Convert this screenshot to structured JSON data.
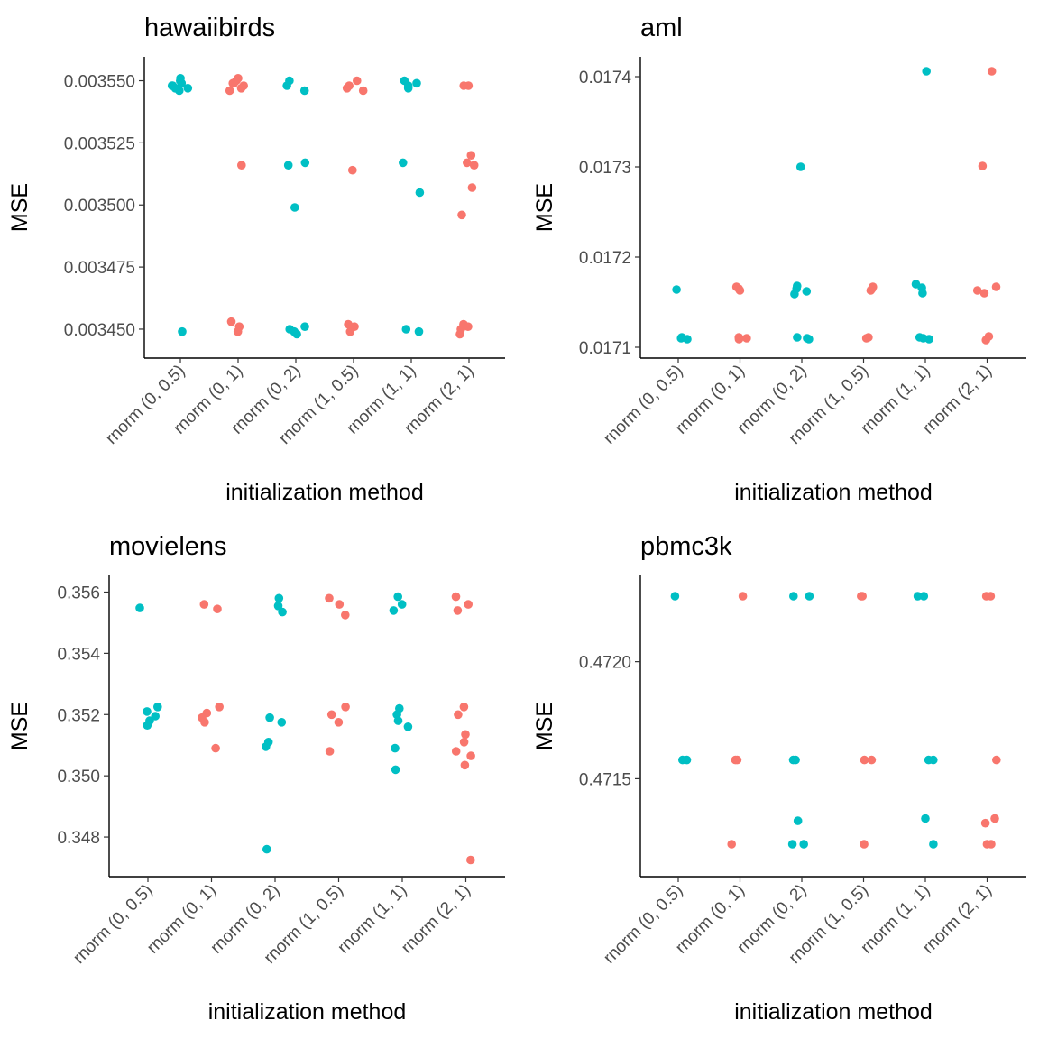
{
  "colors": {
    "teal": "#00BFC4",
    "salmon": "#F8766D"
  },
  "chart_data": [
    {
      "type": "scatter",
      "title": "hawaiibirds",
      "xlabel": "initialization method",
      "ylabel": "MSE",
      "categories": [
        "rnorm (0, 0.5)",
        "rnorm (0, 1)",
        "rnorm (0, 2)",
        "rnorm (1, 0.5)",
        "rnorm (1, 1)",
        "rnorm (2, 1)"
      ],
      "category_colors": [
        "teal",
        "salmon",
        "teal",
        "salmon",
        "teal",
        "salmon"
      ],
      "yticks": [
        "0.003450",
        "0.003475",
        "0.003500",
        "0.003525",
        "0.003550"
      ],
      "ylim": [
        0.003442,
        0.003556
      ],
      "points": [
        [
          0.00355,
          0.003549,
          0.003548,
          0.003547,
          0.003546,
          0.003551,
          0.003548,
          0.003547,
          0.003449
        ],
        [
          0.00355,
          0.003549,
          0.003548,
          0.003547,
          0.003546,
          0.003551,
          0.003549,
          0.003516,
          0.003453,
          0.003451,
          0.003449
        ],
        [
          0.00355,
          0.003548,
          0.003546,
          0.003517,
          0.003516,
          0.003499,
          0.003451,
          0.00345,
          0.003449,
          0.003448
        ],
        [
          0.00355,
          0.003548,
          0.003547,
          0.003546,
          0.003514,
          0.003452,
          0.003451,
          0.003449
        ],
        [
          0.00355,
          0.003549,
          0.003548,
          0.003547,
          0.003517,
          0.003505,
          0.00345,
          0.003449
        ],
        [
          0.003548,
          0.003548,
          0.00352,
          0.003517,
          0.003516,
          0.003507,
          0.003496,
          0.003452,
          0.003451,
          0.00345,
          0.003448
        ]
      ]
    },
    {
      "type": "scatter",
      "title": "aml",
      "xlabel": "initialization method",
      "ylabel": "MSE",
      "categories": [
        "rnorm (0, 0.5)",
        "rnorm (0, 1)",
        "rnorm (0, 2)",
        "rnorm (1, 0.5)",
        "rnorm (1, 1)",
        "rnorm (2, 1)"
      ],
      "category_colors": [
        "teal",
        "salmon",
        "teal",
        "salmon",
        "teal",
        "salmon"
      ],
      "yticks": [
        "0.0171",
        "0.0172",
        "0.0173",
        "0.0174"
      ],
      "ylim": [
        0.017098,
        0.017412
      ],
      "points": [
        [
          0.017164,
          0.017111,
          0.01711,
          0.017109
        ],
        [
          0.017167,
          0.017165,
          0.017163,
          0.017111,
          0.01711,
          0.017109
        ],
        [
          0.0173,
          0.017168,
          0.017165,
          0.017162,
          0.017159,
          0.017111,
          0.01711,
          0.017109
        ],
        [
          0.017167,
          0.017165,
          0.017163,
          0.017111,
          0.01711
        ],
        [
          0.017406,
          0.01717,
          0.017166,
          0.01716,
          0.017111,
          0.01711,
          0.017109
        ],
        [
          0.017406,
          0.017301,
          0.017167,
          0.017163,
          0.01716,
          0.017112,
          0.017108
        ]
      ]
    },
    {
      "type": "scatter",
      "title": "movielens",
      "xlabel": "initialization method",
      "ylabel": "MSE",
      "categories": [
        "rnorm (0, 0.5)",
        "rnorm (0, 1)",
        "rnorm (0, 2)",
        "rnorm (1, 0.5)",
        "rnorm (1, 1)",
        "rnorm (2, 1)"
      ],
      "category_colors": [
        "teal",
        "salmon",
        "teal",
        "salmon",
        "teal",
        "salmon"
      ],
      "yticks": [
        "0.348",
        "0.350",
        "0.352",
        "0.354",
        "0.356"
      ],
      "ylim": [
        0.347,
        0.35625
      ],
      "points": [
        [
          0.35548,
          0.35225,
          0.3521,
          0.35195,
          0.3518,
          0.35165
        ],
        [
          0.3556,
          0.35545,
          0.35225,
          0.35205,
          0.3519,
          0.35175,
          0.3509
        ],
        [
          0.3558,
          0.35555,
          0.35535,
          0.3519,
          0.35175,
          0.3511,
          0.35095,
          0.3476
        ],
        [
          0.3558,
          0.3556,
          0.35525,
          0.35225,
          0.352,
          0.35175,
          0.3508
        ],
        [
          0.35585,
          0.3556,
          0.3554,
          0.3522,
          0.352,
          0.3518,
          0.3516,
          0.3509,
          0.3502
        ],
        [
          0.35585,
          0.3556,
          0.3554,
          0.35225,
          0.352,
          0.35135,
          0.3511,
          0.3508,
          0.35065,
          0.35035,
          0.34725
        ]
      ]
    },
    {
      "type": "scatter",
      "title": "pbmc3k",
      "xlabel": "initialization method",
      "ylabel": "MSE",
      "categories": [
        "rnorm (0, 0.5)",
        "rnorm (0, 1)",
        "rnorm (0, 2)",
        "rnorm (1, 0.5)",
        "rnorm (1, 1)",
        "rnorm (2, 1)"
      ],
      "category_colors": [
        "teal",
        "salmon",
        "teal",
        "salmon",
        "teal",
        "salmon"
      ],
      "yticks": [
        "0.4715",
        "0.4720"
      ],
      "ylim": [
        0.47112,
        0.47233
      ],
      "points": [
        [
          0.47228,
          0.47158,
          0.47158
        ],
        [
          0.47228,
          0.47158,
          0.47158,
          0.47122
        ],
        [
          0.47228,
          0.47228,
          0.47158,
          0.47158,
          0.47132,
          0.47122,
          0.47122
        ],
        [
          0.47228,
          0.47228,
          0.47158,
          0.47158,
          0.47122
        ],
        [
          0.47228,
          0.47228,
          0.47158,
          0.47158,
          0.47133,
          0.47122
        ],
        [
          0.47228,
          0.47228,
          0.47158,
          0.47133,
          0.47131,
          0.47122,
          0.47122
        ]
      ]
    }
  ]
}
